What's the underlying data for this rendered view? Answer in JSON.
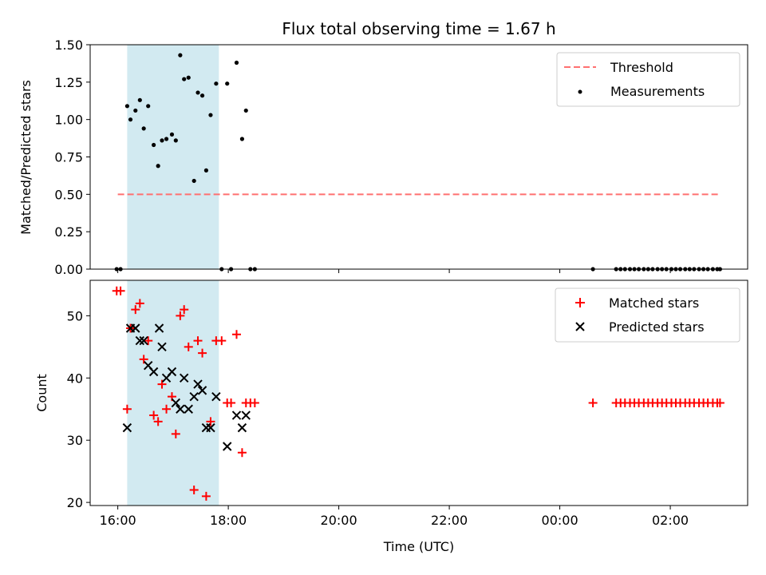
{
  "chart_data": [
    {
      "type": "scatter",
      "title": "Flux total observing time = 1.67 h",
      "xlabel": "",
      "ylabel": "Matched/Predicted stars",
      "xlim": [
        15.5,
        27.4
      ],
      "ylim": [
        0,
        1.5
      ],
      "yticks": [
        0,
        0.25,
        0.5,
        0.75,
        1.0,
        1.25,
        1.5
      ],
      "ytick_labels": [
        "0.00",
        "0.25",
        "0.50",
        "0.75",
        "1.00",
        "1.25",
        "1.50"
      ],
      "xticks": [
        16,
        18,
        20,
        22,
        24,
        26
      ],
      "shaded_region": {
        "x0": 16.17,
        "x1": 17.83,
        "color": "#add8e6"
      },
      "threshold": {
        "name": "Threshold",
        "value": 0.5,
        "x0": 16,
        "x1": 26.9,
        "color": "#ff7070"
      },
      "series": [
        {
          "name": "Measurements",
          "color": "#000000",
          "points": [
            [
              15.98,
              0.0
            ],
            [
              16.05,
              0.0
            ],
            [
              16.17,
              1.09
            ],
            [
              16.23,
              1.0
            ],
            [
              16.32,
              1.06
            ],
            [
              16.4,
              1.13
            ],
            [
              16.47,
              0.94
            ],
            [
              16.55,
              1.09
            ],
            [
              16.65,
              0.83
            ],
            [
              16.73,
              0.69
            ],
            [
              16.8,
              0.86
            ],
            [
              16.88,
              0.87
            ],
            [
              16.98,
              0.9
            ],
            [
              17.05,
              0.86
            ],
            [
              17.13,
              1.43
            ],
            [
              17.2,
              1.27
            ],
            [
              17.28,
              1.28
            ],
            [
              17.38,
              0.59
            ],
            [
              17.45,
              1.18
            ],
            [
              17.53,
              1.16
            ],
            [
              17.6,
              0.66
            ],
            [
              17.68,
              1.03
            ],
            [
              17.78,
              1.24
            ],
            [
              17.88,
              0.0
            ],
            [
              17.98,
              1.24
            ],
            [
              18.05,
              0.0
            ],
            [
              18.15,
              1.38
            ],
            [
              18.25,
              0.87
            ],
            [
              18.32,
              1.06
            ],
            [
              18.4,
              0.0
            ],
            [
              18.48,
              0.0
            ],
            [
              24.6,
              0.0
            ],
            [
              25.02,
              0.0
            ],
            [
              25.1,
              0.0
            ],
            [
              25.18,
              0.0
            ],
            [
              25.27,
              0.0
            ],
            [
              25.35,
              0.0
            ],
            [
              25.43,
              0.0
            ],
            [
              25.52,
              0.0
            ],
            [
              25.6,
              0.0
            ],
            [
              25.68,
              0.0
            ],
            [
              25.77,
              0.0
            ],
            [
              25.85,
              0.0
            ],
            [
              25.93,
              0.0
            ],
            [
              26.02,
              0.0
            ],
            [
              26.1,
              0.0
            ],
            [
              26.18,
              0.0
            ],
            [
              26.27,
              0.0
            ],
            [
              26.35,
              0.0
            ],
            [
              26.43,
              0.0
            ],
            [
              26.52,
              0.0
            ],
            [
              26.6,
              0.0
            ],
            [
              26.68,
              0.0
            ],
            [
              26.77,
              0.0
            ],
            [
              26.85,
              0.0
            ],
            [
              26.9,
              0.0
            ]
          ]
        }
      ],
      "legend": [
        "Threshold",
        "Measurements"
      ],
      "legend_position": "top-right"
    },
    {
      "type": "scatter",
      "title": "",
      "xlabel": "Time (UTC)",
      "ylabel": "Count",
      "xlim": [
        15.5,
        27.4
      ],
      "ylim": [
        19.5,
        55.7
      ],
      "yticks": [
        20,
        30,
        40,
        50
      ],
      "ytick_labels": [
        "20",
        "30",
        "40",
        "50"
      ],
      "xticks": [
        16,
        18,
        20,
        22,
        24,
        26
      ],
      "xtick_labels": [
        "16:00",
        "18:00",
        "20:00",
        "22:00",
        "00:00",
        "02:00"
      ],
      "shaded_region": {
        "x0": 16.17,
        "x1": 17.83,
        "color": "#add8e6"
      },
      "series": [
        {
          "name": "Matched stars",
          "marker": "plus",
          "color": "#ff0000",
          "points": [
            [
              15.98,
              54
            ],
            [
              16.05,
              54
            ],
            [
              16.17,
              35
            ],
            [
              16.23,
              48
            ],
            [
              16.32,
              51
            ],
            [
              16.4,
              52
            ],
            [
              16.47,
              43
            ],
            [
              16.55,
              46
            ],
            [
              16.65,
              34
            ],
            [
              16.73,
              33
            ],
            [
              16.8,
              39
            ],
            [
              16.88,
              35
            ],
            [
              16.98,
              37
            ],
            [
              17.05,
              31
            ],
            [
              17.13,
              50
            ],
            [
              17.2,
              51
            ],
            [
              17.28,
              45
            ],
            [
              17.38,
              22
            ],
            [
              17.45,
              46
            ],
            [
              17.53,
              44
            ],
            [
              17.6,
              21
            ],
            [
              17.68,
              33
            ],
            [
              17.78,
              46
            ],
            [
              17.88,
              46
            ],
            [
              17.98,
              36
            ],
            [
              18.05,
              36
            ],
            [
              18.15,
              47
            ],
            [
              18.25,
              28
            ],
            [
              18.32,
              36
            ],
            [
              18.4,
              36
            ],
            [
              18.48,
              36
            ],
            [
              24.6,
              36
            ],
            [
              25.02,
              36
            ],
            [
              25.1,
              36
            ],
            [
              25.18,
              36
            ],
            [
              25.27,
              36
            ],
            [
              25.35,
              36
            ],
            [
              25.43,
              36
            ],
            [
              25.52,
              36
            ],
            [
              25.6,
              36
            ],
            [
              25.68,
              36
            ],
            [
              25.77,
              36
            ],
            [
              25.85,
              36
            ],
            [
              25.93,
              36
            ],
            [
              26.02,
              36
            ],
            [
              26.1,
              36
            ],
            [
              26.18,
              36
            ],
            [
              26.27,
              36
            ],
            [
              26.35,
              36
            ],
            [
              26.43,
              36
            ],
            [
              26.52,
              36
            ],
            [
              26.6,
              36
            ],
            [
              26.68,
              36
            ],
            [
              26.77,
              36
            ],
            [
              26.85,
              36
            ],
            [
              26.9,
              36
            ]
          ]
        },
        {
          "name": "Predicted stars",
          "marker": "x",
          "color": "#000000",
          "points": [
            [
              16.17,
              32
            ],
            [
              16.23,
              48
            ],
            [
              16.32,
              48
            ],
            [
              16.4,
              46
            ],
            [
              16.47,
              46
            ],
            [
              16.55,
              42
            ],
            [
              16.65,
              41
            ],
            [
              16.75,
              48
            ],
            [
              16.8,
              45
            ],
            [
              16.88,
              40
            ],
            [
              16.98,
              41
            ],
            [
              17.05,
              36
            ],
            [
              17.13,
              35
            ],
            [
              17.2,
              40
            ],
            [
              17.28,
              35
            ],
            [
              17.38,
              37
            ],
            [
              17.45,
              39
            ],
            [
              17.53,
              38
            ],
            [
              17.6,
              32
            ],
            [
              17.68,
              32
            ],
            [
              17.78,
              37
            ],
            [
              17.98,
              29
            ],
            [
              18.15,
              34
            ],
            [
              18.25,
              32
            ],
            [
              18.32,
              34
            ]
          ]
        }
      ],
      "legend": [
        "Matched stars",
        "Predicted stars"
      ],
      "legend_position": "top-right"
    }
  ]
}
